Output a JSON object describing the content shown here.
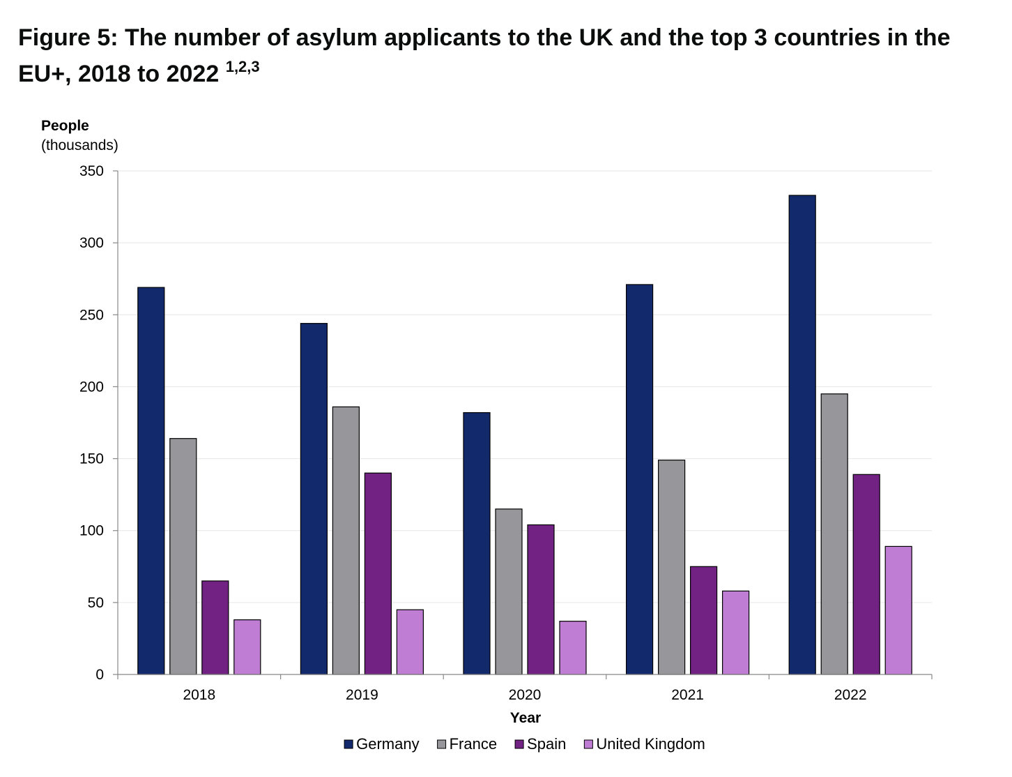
{
  "title_text": "Figure 5: The number of asylum applicants to the UK and the top 3 countries in the EU+, 2018 to 2022",
  "title_superscript": "1,2,3",
  "chart_data": {
    "type": "bar",
    "ylabel": "People",
    "ylabel_unit": "(thousands)",
    "xlabel": "Year",
    "categories": [
      "2018",
      "2019",
      "2020",
      "2021",
      "2022"
    ],
    "ylim": [
      0,
      350
    ],
    "yticks": [
      0,
      50,
      100,
      150,
      200,
      250,
      300,
      350
    ],
    "grid": true,
    "legend_position": "bottom",
    "series": [
      {
        "name": "Germany",
        "color": "#12296b",
        "values": [
          269,
          244,
          182,
          271,
          333
        ]
      },
      {
        "name": "France",
        "color": "#97979b",
        "values": [
          164,
          186,
          115,
          149,
          195
        ]
      },
      {
        "name": "Spain",
        "color": "#722282",
        "values": [
          65,
          140,
          104,
          75,
          139
        ]
      },
      {
        "name": "United Kingdom",
        "color": "#bf7dd3",
        "values": [
          38,
          45,
          37,
          58,
          89
        ]
      }
    ]
  }
}
